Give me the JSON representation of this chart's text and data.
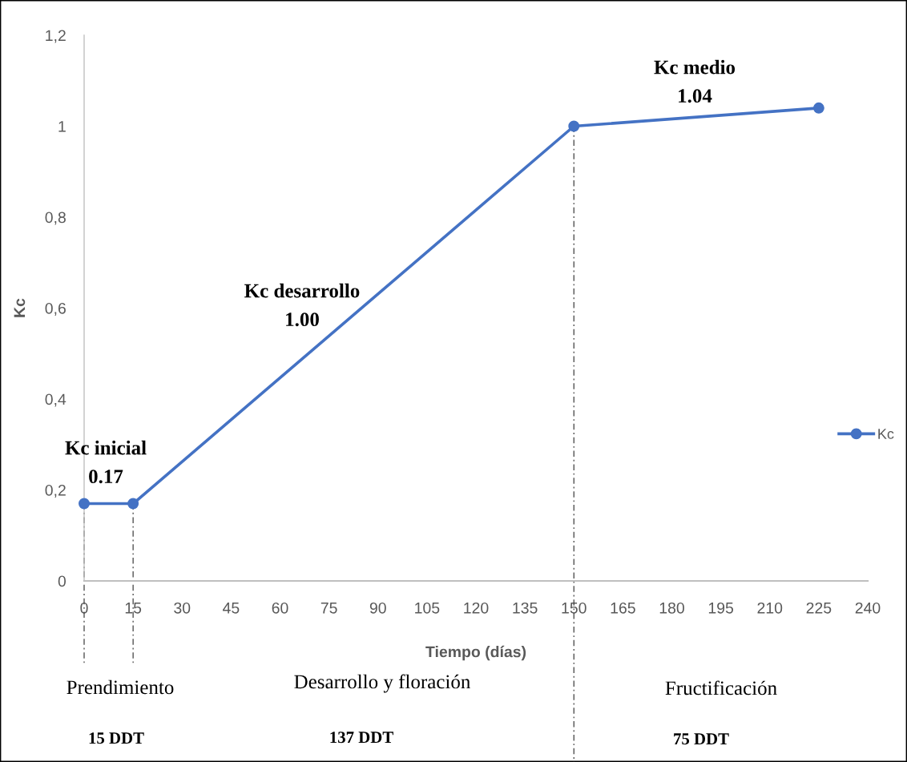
{
  "chart_data": {
    "type": "line",
    "xlabel": "Tiempo (días)",
    "ylabel": "Kc",
    "x": [
      0,
      15,
      150,
      225
    ],
    "series": [
      {
        "name": "Kc",
        "color": "#4472c4",
        "values": [
          0.17,
          0.17,
          1.0,
          1.04
        ]
      }
    ],
    "xlim": [
      0,
      240
    ],
    "xticks": [
      0,
      15,
      30,
      45,
      60,
      75,
      90,
      105,
      120,
      135,
      150,
      165,
      180,
      195,
      210,
      225,
      240
    ],
    "ylim": [
      0,
      1.2
    ],
    "yticks": [
      0,
      {
        "value": 0.2,
        "label": "0,2"
      },
      {
        "value": 0.4,
        "label": "0,4"
      },
      {
        "value": 0.6,
        "label": "0,6"
      },
      {
        "value": 0.8,
        "label": "0,8"
      },
      1,
      {
        "value": 1.2,
        "label": "1,2"
      }
    ],
    "marker": "circle",
    "line_style": "solid",
    "legend": "right",
    "ref_lines": [
      {
        "axis": "x",
        "value": 0,
        "color": "#404040",
        "line_style": "dashed"
      },
      {
        "axis": "x",
        "value": 15,
        "color": "#404040",
        "line_style": "dashed"
      },
      {
        "axis": "x",
        "value": 150,
        "color": "#404040",
        "line_style": "dashed"
      }
    ],
    "annotations": [
      "Kc inicial\n0.17",
      "Kc desarrollo\n1.00",
      "Kc medio\n1.04",
      "Prendimiento",
      "Desarrollo y floración",
      "Fructificación",
      "15 DDT",
      "137 DDT",
      "75 DDT"
    ]
  }
}
